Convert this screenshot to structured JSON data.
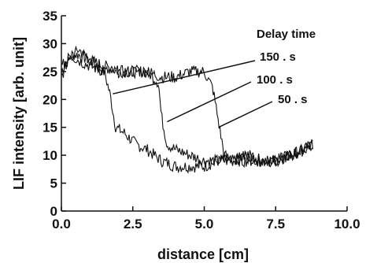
{
  "chart_data": {
    "type": "line",
    "xlabel": "distance [cm]",
    "ylabel": "LIF intensity [arb. unit]",
    "xlim": [
      0.0,
      10.0
    ],
    "ylim": [
      0,
      35
    ],
    "x_ticks": [
      "0.0",
      "2.5",
      "5.0",
      "7.5",
      "10.0"
    ],
    "y_ticks": [
      "0",
      "5",
      "10",
      "15",
      "20",
      "25",
      "30",
      "35"
    ],
    "grid": false,
    "legend_title": "Delay time",
    "legend_placement": "top-right",
    "line_color": "#111111",
    "series": [
      {
        "name": "50 . s",
        "x": [
          0.0,
          0.3,
          0.6,
          1.0,
          1.5,
          1.7,
          1.9,
          2.2,
          2.6,
          3.0,
          3.5,
          4.0,
          4.5,
          5.0,
          5.5,
          6.0,
          6.5,
          7.0,
          7.5,
          8.0,
          8.5,
          8.8
        ],
        "y": [
          25,
          28,
          28,
          27,
          25,
          21,
          15,
          14,
          12,
          11,
          9,
          8,
          8,
          8,
          9,
          9,
          10,
          9,
          9,
          10,
          11,
          12
        ]
      },
      {
        "name": "100 . s",
        "x": [
          0.0,
          0.3,
          0.6,
          1.0,
          1.5,
          2.0,
          2.5,
          3.0,
          3.4,
          3.5,
          3.7,
          4.0,
          4.5,
          5.0,
          5.5,
          6.0,
          6.5,
          7.0,
          7.5,
          8.0,
          8.5,
          8.8
        ],
        "y": [
          26,
          27,
          29,
          27,
          26,
          25,
          25,
          25,
          23,
          17,
          12,
          11,
          10,
          9,
          9,
          9,
          10,
          9,
          9,
          10,
          11,
          12
        ]
      },
      {
        "name": "150 . s",
        "x": [
          0.0,
          0.3,
          0.6,
          1.0,
          1.5,
          2.0,
          2.5,
          3.0,
          3.5,
          4.0,
          4.5,
          5.0,
          5.3,
          5.5,
          5.7,
          6.0,
          6.5,
          7.0,
          7.5,
          8.0,
          8.5,
          8.8
        ],
        "y": [
          24,
          28,
          27,
          26,
          25,
          25,
          25,
          25,
          24,
          24,
          25,
          25,
          22,
          16,
          10,
          9,
          9,
          9,
          9,
          10,
          11,
          12
        ]
      }
    ],
    "annotations": [
      {
        "label": "150 . s",
        "target_series": "150 . s",
        "target_x": 1.8,
        "target_y": 21
      },
      {
        "label": "100 . s",
        "target_series": "100 . s",
        "target_x": 3.7,
        "target_y": 16
      },
      {
        "label": "50 . s",
        "target_series": "50 . s",
        "target_x": 5.5,
        "target_y": 15
      }
    ]
  }
}
